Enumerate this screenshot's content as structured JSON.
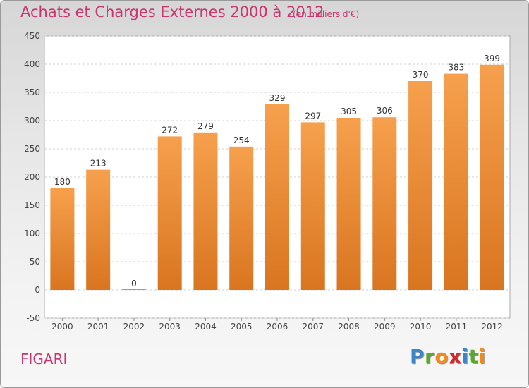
{
  "header": {
    "title": "Achats et Charges Externes 2000 à 2012",
    "subtitle": "(en milliers d'€)"
  },
  "footer": {
    "place": "FIGARI",
    "logo_letters": [
      "P",
      "r",
      "o",
      "x",
      "i",
      "t",
      "i"
    ],
    "logo_colors": [
      "#3a86c8",
      "#58a832",
      "#f08c1e",
      "#d8262d",
      "#3a86c8",
      "#58a832",
      "#f08c1e"
    ]
  },
  "chart_data": {
    "type": "bar",
    "title": "Achats et Charges Externes 2000 à 2012",
    "subtitle": "(en milliers d'€)",
    "categories": [
      "2000",
      "2001",
      "2002",
      "2003",
      "2004",
      "2005",
      "2006",
      "2007",
      "2008",
      "2009",
      "2010",
      "2011",
      "2012"
    ],
    "values": [
      180,
      213,
      0,
      272,
      279,
      254,
      329,
      297,
      305,
      306,
      370,
      383,
      399
    ],
    "ylim": [
      -50,
      450
    ],
    "yticks": [
      -50,
      0,
      50,
      100,
      150,
      200,
      250,
      300,
      350,
      400,
      450
    ],
    "grid": true,
    "bar_color_top": "#f6a04d",
    "bar_color_bottom": "#d97520"
  }
}
